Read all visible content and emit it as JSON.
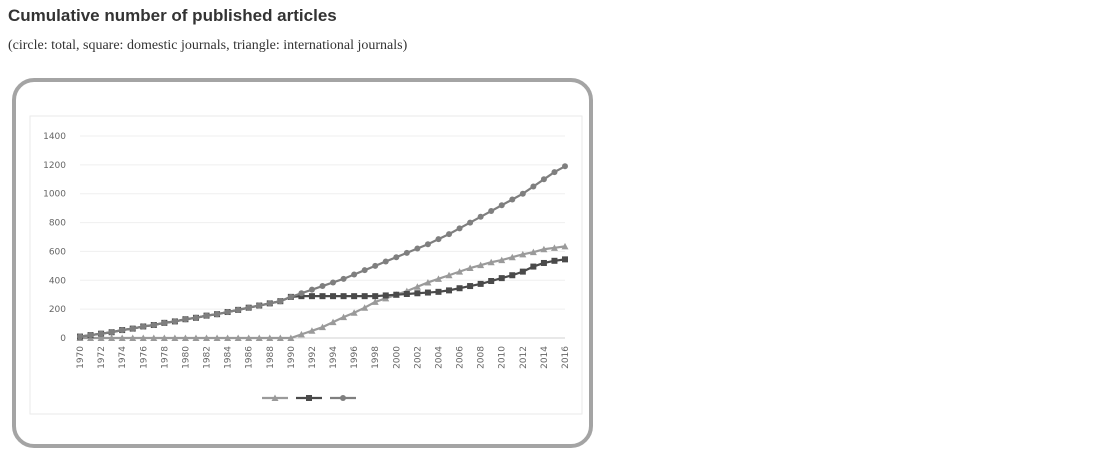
{
  "header": {
    "title": "Cumulative number of published articles",
    "subtitle": "(circle: total, square: domestic journals, triangle: international journals)"
  },
  "chart_data": {
    "type": "line",
    "title": "",
    "xlabel": "",
    "ylabel": "",
    "ylim": [
      0,
      1400
    ],
    "yticks": [
      0,
      200,
      400,
      600,
      800,
      1000,
      1200,
      1400
    ],
    "xtick_labels": [
      "1970",
      "1972",
      "1974",
      "1976",
      "1978",
      "1980",
      "1982",
      "1984",
      "1986",
      "1988",
      "1990",
      "1992",
      "1994",
      "1996",
      "1998",
      "2000",
      "2002",
      "2004",
      "2006",
      "2008",
      "2010",
      "2012",
      "2014",
      "2016"
    ],
    "grid": true,
    "legend": "bottom",
    "x": [
      1970,
      1971,
      1972,
      1973,
      1974,
      1975,
      1976,
      1977,
      1978,
      1979,
      1980,
      1981,
      1982,
      1983,
      1984,
      1985,
      1986,
      1987,
      1988,
      1989,
      1990,
      1991,
      1992,
      1993,
      1994,
      1995,
      1996,
      1997,
      1998,
      1999,
      2000,
      2001,
      2002,
      2003,
      2004,
      2005,
      2006,
      2007,
      2008,
      2009,
      2010,
      2011,
      2012,
      2013,
      2014,
      2015,
      2016
    ],
    "series": [
      {
        "marker": "triangle",
        "color": "#9a9a9a",
        "values": [
          0,
          0,
          0,
          0,
          0,
          0,
          0,
          0,
          0,
          0,
          0,
          0,
          0,
          0,
          0,
          0,
          0,
          0,
          0,
          0,
          0,
          25,
          50,
          75,
          110,
          145,
          175,
          210,
          250,
          275,
          300,
          325,
          355,
          385,
          410,
          435,
          460,
          485,
          505,
          525,
          540,
          560,
          580,
          595,
          615,
          625,
          635
        ]
      },
      {
        "marker": "square",
        "color": "#4a4a4a",
        "values": [
          10,
          20,
          30,
          40,
          55,
          65,
          80,
          90,
          105,
          115,
          130,
          140,
          155,
          165,
          180,
          195,
          210,
          225,
          240,
          255,
          285,
          290,
          290,
          290,
          290,
          290,
          290,
          290,
          290,
          295,
          300,
          305,
          310,
          315,
          320,
          330,
          345,
          360,
          375,
          395,
          415,
          435,
          460,
          495,
          520,
          535,
          545
        ]
      },
      {
        "marker": "circle",
        "color": "#7f7f7f",
        "values": [
          10,
          20,
          30,
          40,
          55,
          65,
          80,
          90,
          105,
          115,
          130,
          140,
          155,
          165,
          180,
          195,
          210,
          225,
          240,
          255,
          285,
          310,
          335,
          360,
          385,
          410,
          440,
          470,
          500,
          530,
          560,
          590,
          620,
          650,
          685,
          720,
          760,
          800,
          840,
          880,
          920,
          960,
          1000,
          1050,
          1100,
          1150,
          1190
        ]
      }
    ]
  }
}
